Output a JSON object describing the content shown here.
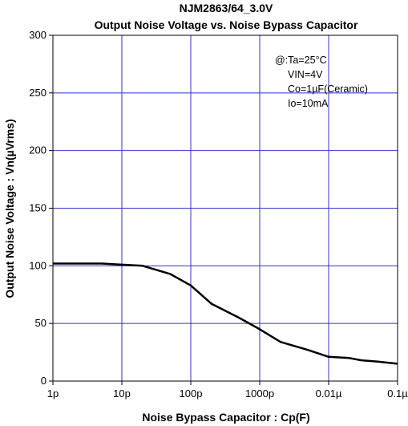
{
  "chart_data": {
    "type": "line",
    "title": "NJM2863/64_3.0V",
    "subtitle": "Output Noise Voltage vs. Noise Bypass Capacitor",
    "xlabel": "Noise Bypass Capacitor : Cp(F)",
    "ylabel": "Output Noise Voltage : Vn(µVrms)",
    "x_scale": "log",
    "x_ticks": [
      {
        "value": 1e-12,
        "label": "1p"
      },
      {
        "value": 1e-11,
        "label": "10p"
      },
      {
        "value": 1e-10,
        "label": "100p"
      },
      {
        "value": 1e-09,
        "label": "1000p"
      },
      {
        "value": 1e-08,
        "label": "0.01µ"
      },
      {
        "value": 1e-07,
        "label": "0.1µ"
      }
    ],
    "y_ticks": [
      {
        "value": 0,
        "label": "0"
      },
      {
        "value": 50,
        "label": "50"
      },
      {
        "value": 100,
        "label": "100"
      },
      {
        "value": 150,
        "label": "150"
      },
      {
        "value": 200,
        "label": "200"
      },
      {
        "value": 250,
        "label": "250"
      },
      {
        "value": 300,
        "label": "300"
      }
    ],
    "xlim": [
      1e-12,
      1e-07
    ],
    "ylim": [
      0,
      300
    ],
    "grid": true,
    "series": [
      {
        "color": "#000000",
        "x": [
          1e-12,
          5e-12,
          1e-11,
          2e-11,
          5e-11,
          1e-10,
          2e-10,
          5e-10,
          1e-09,
          2e-09,
          5e-09,
          1e-08,
          2e-08,
          3e-08,
          5e-08,
          1e-07
        ],
        "y": [
          102,
          102,
          101,
          100,
          93,
          83,
          67,
          55,
          45,
          34,
          27,
          21,
          20,
          18,
          17,
          15
        ]
      }
    ],
    "annotations": [
      "@:Ta=25°C",
      "VIN=4V",
      "Co=1µF(Ceramic)",
      "Io=10mA"
    ]
  },
  "colors": {
    "grid": "#3333cc",
    "frame": "#000000",
    "line": "#000000"
  }
}
